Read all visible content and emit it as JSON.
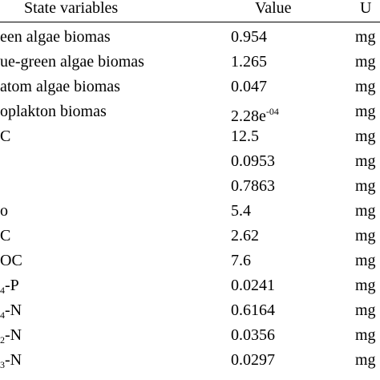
{
  "table": {
    "header": [
      "State variables",
      "Value",
      "U"
    ],
    "rows": [
      {
        "variable": "een algae biomas",
        "value": "0.954",
        "unit": "mg"
      },
      {
        "variable": "ue-green algae biomas",
        "value": "1.265",
        "unit": "mg"
      },
      {
        "variable": "atom algae biomas",
        "value": "0.047",
        "unit": "mg"
      },
      {
        "variable": "oplakton biomas",
        "value": "2.28e",
        "value_sup": "-04",
        "unit": "mg"
      },
      {
        "variable": "C",
        "value": "12.5",
        "unit": "mg"
      },
      {
        "value": "0.0953",
        "unit": "mg"
      },
      {
        "value": "0.7863",
        "unit": "mg"
      },
      {
        "variable": "o",
        "value": "5.4",
        "unit": "mg"
      },
      {
        "variable": "C",
        "value": "2.62",
        "unit": "mg"
      },
      {
        "variable": "OC",
        "value": "7.6",
        "unit": "mg"
      },
      {
        "variable_sub": "4",
        "variable": "-P",
        "value": "0.0241",
        "unit": "mg"
      },
      {
        "variable_sub": "4",
        "variable": "-N",
        "value": "0.6164",
        "unit": "mg"
      },
      {
        "variable_sub": "2",
        "variable": "-N",
        "value": "0.0356",
        "unit": "mg"
      },
      {
        "variable_sub": "3",
        "variable": "-N",
        "value": "0.0297",
        "unit": "mg"
      }
    ]
  }
}
